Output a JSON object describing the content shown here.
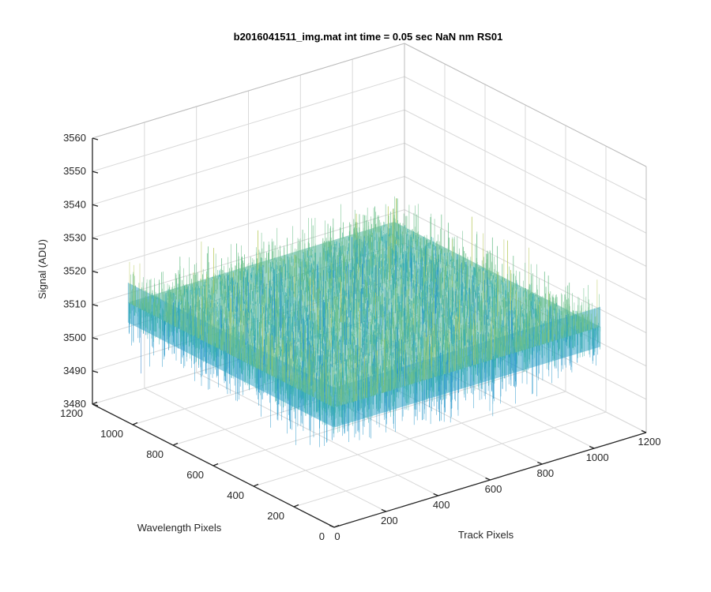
{
  "chart_data": {
    "type": "surface",
    "title": "b2016041511_img.mat int time = 0.05 sec  NaN nm RS01",
    "xlabel": "Track Pixels",
    "ylabel": "Wavelength Pixels",
    "zlabel": "Signal (ADU)",
    "xlim": [
      0,
      1200
    ],
    "ylim": [
      0,
      1200
    ],
    "zlim": [
      3480,
      3560
    ],
    "xticks": [
      "0",
      "200",
      "400",
      "600",
      "800",
      "1000",
      "1200"
    ],
    "yticks": [
      "0",
      "200",
      "400",
      "600",
      "800",
      "1000",
      "1200"
    ],
    "zticks": [
      "3480",
      "3490",
      "3500",
      "3510",
      "3520",
      "3530",
      "3540",
      "3550",
      "3560"
    ],
    "data_extent": {
      "x": [
        0,
        1024
      ],
      "y": [
        0,
        1024
      ]
    },
    "surface": {
      "mean": 3516,
      "min": 3488,
      "max": 3548
    },
    "colormap": [
      "#1f77c6",
      "#2596c9",
      "#3bb0b0",
      "#6cbf8a",
      "#b7c95a",
      "#e8c84a"
    ],
    "grid": true
  }
}
